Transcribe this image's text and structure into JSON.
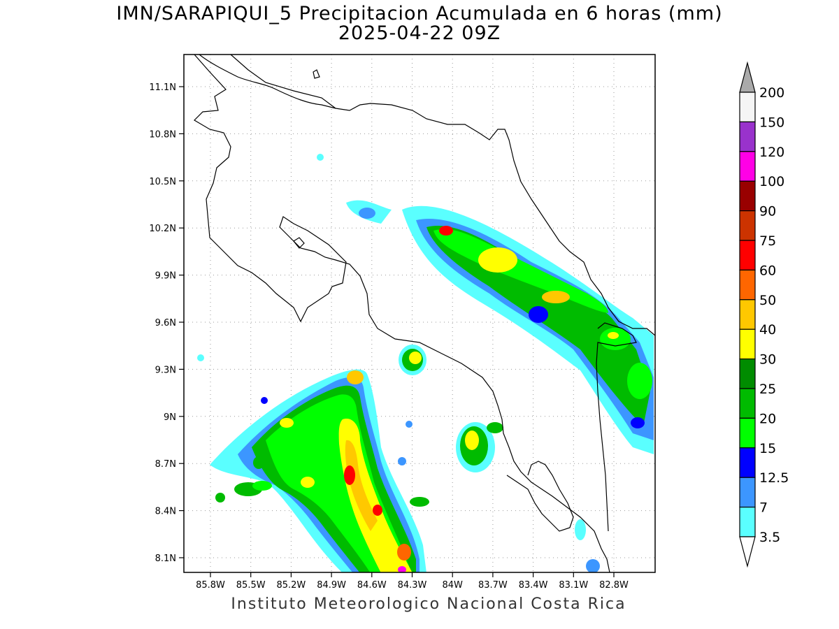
{
  "title": "IMN/SARAPIQUI_5 Precipitacion Acumulada en 6 horas (mm)",
  "subtitle": "2025-04-22 09Z",
  "credit": "Instituto Meteorologico Nacional Costa Rica",
  "lon_labels": [
    "85.8W",
    "85.5W",
    "85.2W",
    "84.9W",
    "84.6W",
    "84.3W",
    "84W",
    "83.7W",
    "83.4W",
    "83.1W",
    "82.8W"
  ],
  "lat_labels": [
    "11.1N",
    "10.8N",
    "10.5N",
    "10.2N",
    "9.9N",
    "9.6N",
    "9.3N",
    "9N",
    "8.7N",
    "8.4N",
    "8.1N"
  ],
  "colorbar": {
    "levels": [
      "200",
      "150",
      "120",
      "100",
      "90",
      "75",
      "60",
      "50",
      "40",
      "30",
      "25",
      "20",
      "15",
      "12.5",
      "7",
      "3.5"
    ],
    "colors": [
      "#aaaaaa",
      "#f5f5f5",
      "#9932cc",
      "#ff00e6",
      "#990000",
      "#cc3300",
      "#ff0000",
      "#ff6600",
      "#ffc800",
      "#ffff00",
      "#008c00",
      "#00bb00",
      "#00ff00",
      "#0000ff",
      "#3c96ff",
      "#5affff"
    ]
  },
  "legend_label": {},
  "legend": {},
  "regions": {},
  "markers": {}
}
